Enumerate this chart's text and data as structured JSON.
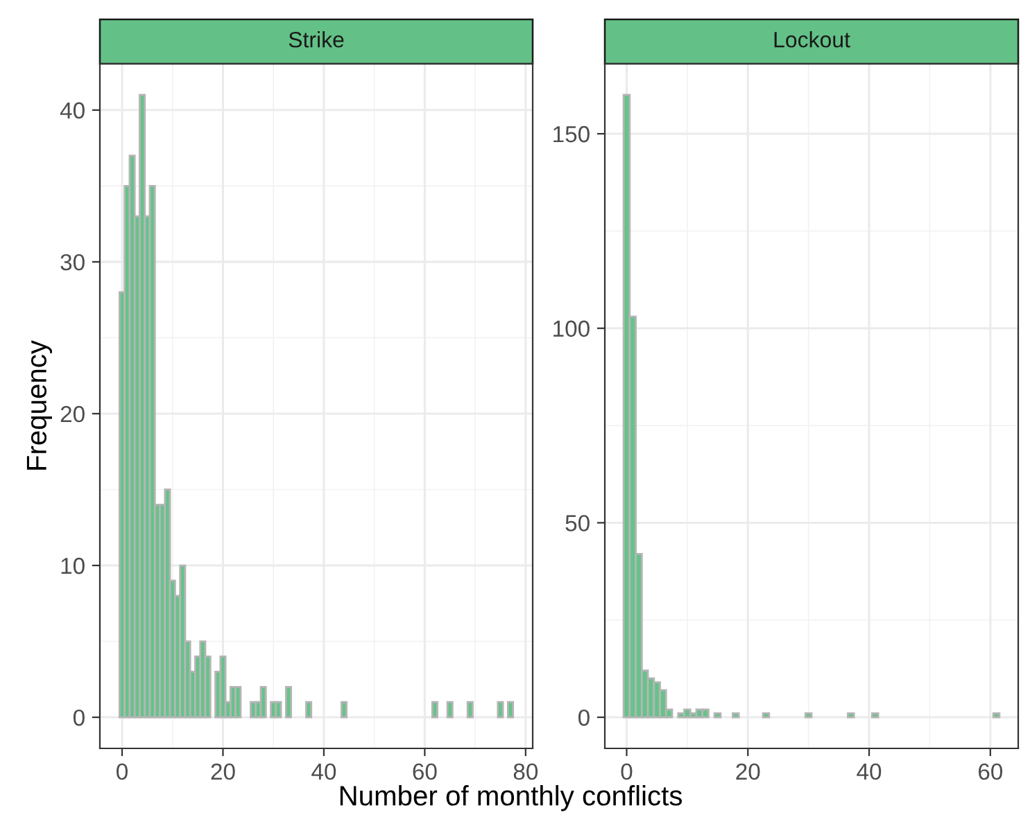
{
  "chart_data": [
    {
      "type": "histogram",
      "title": "Strike",
      "xlabel": "Number of monthly conflicts",
      "ylabel": "Frequency",
      "bins": [
        -0.5,
        0.5,
        1.5,
        2.5,
        3.5,
        4.5,
        5.5,
        6.5,
        7.5,
        8.5,
        9.5,
        10.5,
        11.5,
        12.5,
        13.5,
        14.5,
        15.5,
        16.5,
        17.5,
        18.5,
        19.5,
        20.5,
        21.5,
        22.5,
        23.5,
        24.5,
        25.5,
        26.5,
        27.5,
        28.5,
        29.5,
        30.5,
        31.5,
        32.5,
        33.5,
        34.5,
        35.5,
        36.5,
        37.5,
        38.5,
        39.5,
        40.5,
        41.5,
        42.5,
        43.5,
        44.5,
        45.5,
        46.5,
        47.5,
        48.5,
        49.5,
        50.5,
        51.5,
        52.5,
        53.5,
        54.5,
        55.5,
        56.5,
        57.5,
        58.5,
        59.5,
        60.5,
        61.5,
        62.5,
        63.5,
        64.5,
        65.5,
        66.5,
        67.5,
        68.5,
        69.5,
        70.5,
        71.5,
        72.5,
        73.5,
        74.5,
        75.5,
        76.5,
        77.5
      ],
      "values": [
        28,
        35,
        37,
        33,
        41,
        33,
        35,
        14,
        14,
        15,
        9,
        8,
        10,
        5,
        3,
        4,
        5,
        4,
        0,
        3,
        4,
        1,
        2,
        2,
        0,
        0,
        1,
        1,
        2,
        0,
        1,
        1,
        0,
        2,
        0,
        0,
        0,
        1,
        0,
        0,
        0,
        0,
        0,
        0,
        1,
        0,
        0,
        0,
        0,
        0,
        0,
        0,
        0,
        0,
        0,
        0,
        0,
        0,
        0,
        0,
        0,
        0,
        1,
        0,
        0,
        1,
        0,
        0,
        0,
        1,
        0,
        0,
        0,
        0,
        0,
        1,
        0,
        1
      ],
      "color": "#66c38a",
      "xlim": [
        -4.4,
        81.4
      ],
      "ylim": [
        -2.05,
        43.05
      ],
      "xticks": [
        0,
        20,
        40,
        60,
        80
      ],
      "yticks": [
        0,
        10,
        20,
        30,
        40
      ],
      "grid": true
    },
    {
      "type": "histogram",
      "title": "Lockout",
      "bins": [
        -0.5,
        0.5,
        1.5,
        2.5,
        3.5,
        4.5,
        5.5,
        6.5,
        7.5,
        8.5,
        9.5,
        10.5,
        11.5,
        12.5,
        13.5,
        14.5,
        15.5,
        16.5,
        17.5,
        18.5,
        19.5,
        20.5,
        21.5,
        22.5,
        23.5,
        24.5,
        25.5,
        26.5,
        27.5,
        28.5,
        29.5,
        30.5,
        31.5,
        32.5,
        33.5,
        34.5,
        35.5,
        36.5,
        37.5,
        38.5,
        39.5,
        40.5,
        41.5,
        42.5,
        43.5,
        44.5,
        45.5,
        46.5,
        47.5,
        48.5,
        49.5,
        50.5,
        51.5,
        52.5,
        53.5,
        54.5,
        55.5,
        56.5,
        57.5,
        58.5,
        59.5,
        60.5,
        61.5
      ],
      "values": [
        160,
        103,
        42,
        12,
        10,
        9,
        7,
        2,
        0,
        1,
        2,
        1,
        2,
        2,
        0,
        1,
        0,
        0,
        1,
        0,
        0,
        0,
        0,
        1,
        0,
        0,
        0,
        0,
        0,
        0,
        1,
        0,
        0,
        0,
        0,
        0,
        0,
        1,
        0,
        0,
        0,
        1,
        0,
        0,
        0,
        0,
        0,
        0,
        0,
        0,
        0,
        0,
        0,
        0,
        0,
        0,
        0,
        0,
        0,
        0,
        0,
        1
      ],
      "color": "#66c38a",
      "xlim": [
        -3.6,
        64.6
      ],
      "ylim": [
        -8,
        168
      ],
      "xticks": [
        0,
        20,
        40,
        60
      ],
      "yticks": [
        0,
        50,
        100,
        150
      ],
      "grid": true
    }
  ]
}
